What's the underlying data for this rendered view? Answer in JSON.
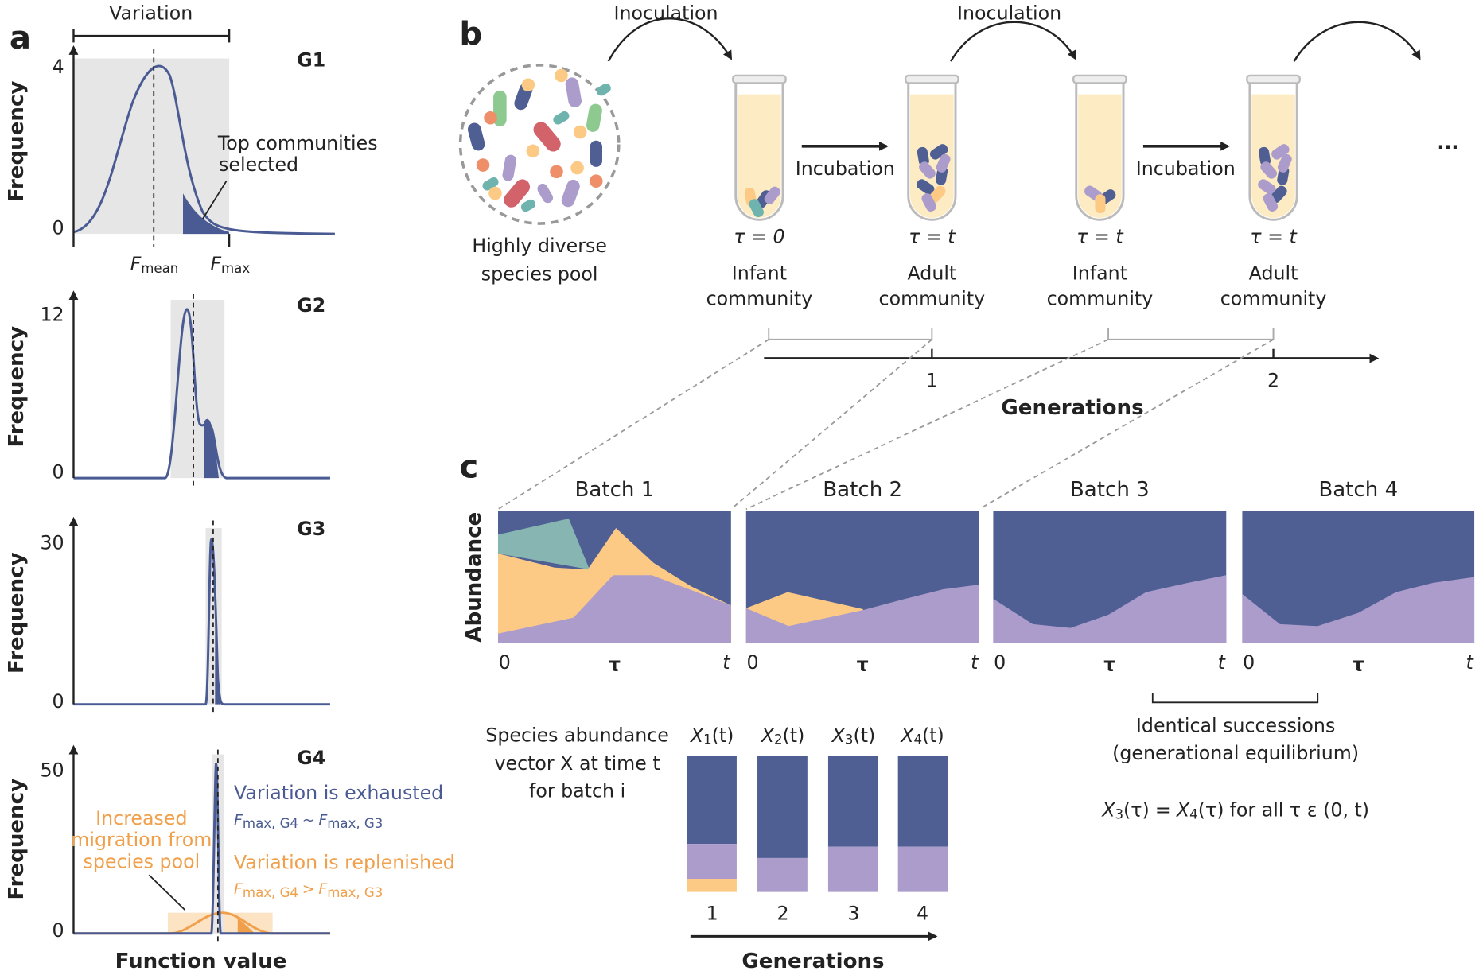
{
  "panel_a": {
    "label": "a",
    "variation": "Variation",
    "y_axis_label": "Frequency",
    "x_axis_label": "Function value",
    "plots": [
      {
        "name": "G1",
        "ticks": [
          "4",
          "0"
        ]
      },
      {
        "name": "G2",
        "ticks": [
          "12",
          "0"
        ]
      },
      {
        "name": "G3",
        "ticks": [
          "30",
          "0"
        ]
      },
      {
        "name": "G4",
        "ticks": [
          "50",
          "0"
        ]
      }
    ],
    "f_mean": {
      "symbol": "F",
      "sub": "mean"
    },
    "f_max": {
      "symbol": "F",
      "sub": "max"
    },
    "top_selected": [
      "Top communities",
      "selected"
    ],
    "exhausted": {
      "title": "Variation is exhausted",
      "lhs": {
        "symbol": "F",
        "sub": "max, G4"
      },
      "op": "~",
      "rhs": {
        "symbol": "F",
        "sub": "max, G3"
      }
    },
    "replenished": {
      "title": "Variation is replenished",
      "lhs": {
        "symbol": "F",
        "sub": "max, G4"
      },
      "op": ">",
      "rhs": {
        "symbol": "F",
        "sub": "max, G3"
      }
    },
    "migration": [
      "Increased",
      "migration from",
      "species pool"
    ]
  },
  "panel_b": {
    "label": "b",
    "pool": [
      "Highly diverse",
      "species pool"
    ],
    "inoculation": [
      "Inoculation",
      "Inoculation"
    ],
    "incubation": [
      "Incubation",
      "Incubation"
    ],
    "tubes": [
      {
        "time": "τ = 0",
        "stage": [
          "Infant",
          "community"
        ]
      },
      {
        "time": "τ = t",
        "stage": [
          "Adult",
          "community"
        ]
      },
      {
        "time": "τ = t",
        "stage": [
          "Infant",
          "community"
        ]
      },
      {
        "time": "τ = t",
        "stage": [
          "Adult",
          "community"
        ]
      }
    ],
    "ellipsis": "...",
    "generations_axis": {
      "ticks": [
        "1",
        "2"
      ],
      "label": "Generations"
    }
  },
  "panel_c": {
    "label": "c",
    "y_axis_label": "Abundance",
    "batches": [
      {
        "title": "Batch 1",
        "start": "0",
        "middle": "τ",
        "end": "t"
      },
      {
        "title": "Batch 2",
        "start": "0",
        "middle": "τ",
        "end": "t"
      },
      {
        "title": "Batch 3",
        "start": "0",
        "middle": "τ",
        "end": "t"
      },
      {
        "title": "Batch 4",
        "start": "0",
        "middle": "τ",
        "end": "t"
      }
    ],
    "vector_description": [
      "Species abundance",
      "vector X at time t",
      "for batch i"
    ],
    "vectors": [
      {
        "symbol": "X",
        "sub": "1",
        "arg": "(t)",
        "generation": "1"
      },
      {
        "symbol": "X",
        "sub": "2",
        "arg": "(t)",
        "generation": "2"
      },
      {
        "symbol": "X",
        "sub": "3",
        "arg": "(t)",
        "generation": "3"
      },
      {
        "symbol": "X",
        "sub": "4",
        "arg": "(t)",
        "generation": "4"
      }
    ],
    "generations_label": "Generations",
    "identical": [
      "Identical successions",
      "(generational equilibrium)"
    ],
    "equation": {
      "lhs": {
        "symbol": "X",
        "sub": "3",
        "arg": "(τ)"
      },
      "op": "=",
      "rhs": {
        "symbol": "X",
        "sub": "4",
        "arg": "(τ)"
      },
      "condition": "for all τ ε (0, t)"
    }
  }
}
